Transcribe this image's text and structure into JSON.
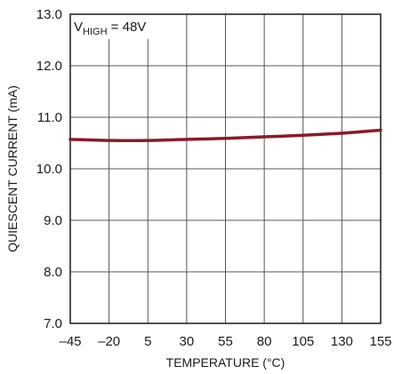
{
  "chart_data": {
    "type": "line",
    "title": "",
    "xlabel": "TEMPERATURE (°C)",
    "ylabel": "QUIESCENT CURRENT (mA)",
    "xlim": [
      -45,
      155
    ],
    "ylim": [
      7.0,
      13.0
    ],
    "x_ticks": [
      -45,
      -20,
      5,
      30,
      55,
      80,
      105,
      130,
      155
    ],
    "x_tick_labels": [
      "–45",
      "–20",
      "5",
      "30",
      "55",
      "80",
      "105",
      "130",
      "155"
    ],
    "y_ticks": [
      7.0,
      8.0,
      9.0,
      10.0,
      11.0,
      12.0,
      13.0
    ],
    "y_tick_labels": [
      "7.0",
      "8.0",
      "9.0",
      "10.0",
      "11.0",
      "12.0",
      "13.0"
    ],
    "grid": true,
    "annotation": {
      "prefix": "V",
      "subscript": "HIGH",
      "suffix": " = 48V"
    },
    "series": [
      {
        "color": "#8b1a2b",
        "x": [
          -45,
          -20,
          5,
          30,
          55,
          80,
          105,
          130,
          155
        ],
        "y": [
          10.57,
          10.55,
          10.55,
          10.57,
          10.59,
          10.62,
          10.65,
          10.69,
          10.75
        ]
      }
    ],
    "colors": {
      "grid": "#555555",
      "frame": "#1a1a1a",
      "text": "#1a1a1a"
    }
  }
}
